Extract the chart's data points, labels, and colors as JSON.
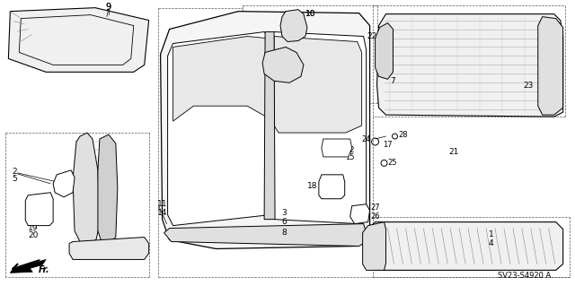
{
  "bg_color": "#ffffff",
  "line_color": "#1a1a1a",
  "fig_width": 6.4,
  "fig_height": 3.19,
  "dpi": 100,
  "diagram_code": "SV23-S4920 A"
}
